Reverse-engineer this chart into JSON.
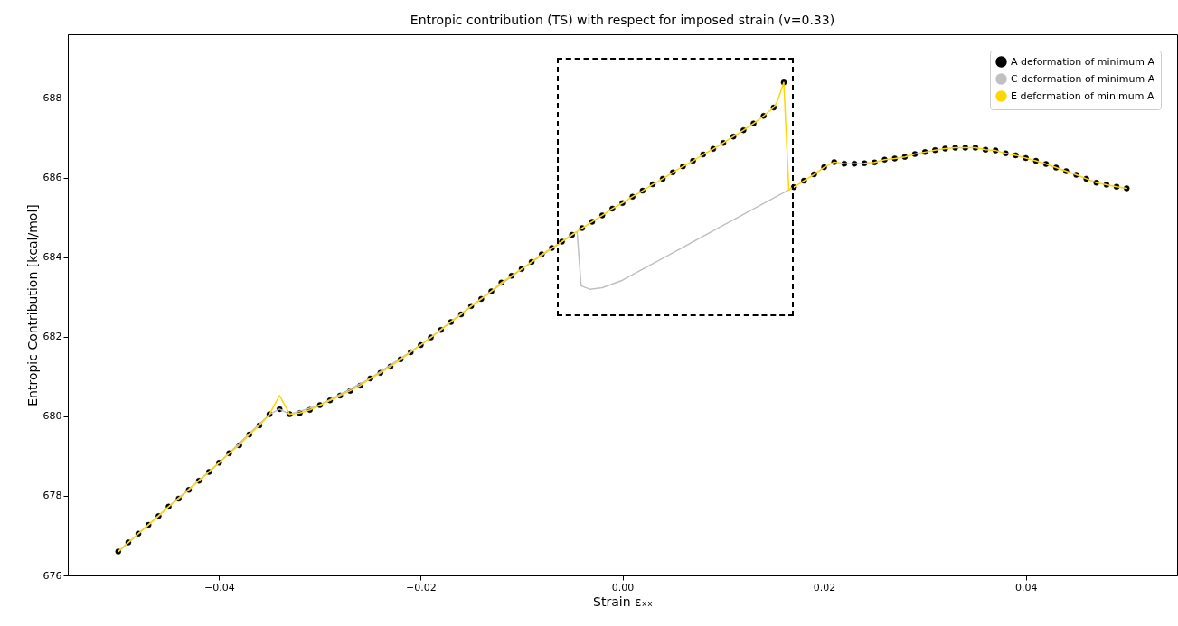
{
  "chart_data": {
    "type": "line",
    "title": "Entropic contribution (TS) with respect for imposed strain (v=0.33)",
    "xlabel": "Strain εₓₓ",
    "ylabel": "Entropic Contribution [kcal/mol]",
    "xlim": [
      -0.055,
      0.055
    ],
    "xticks": [
      {
        "value": -0.04,
        "label": "−0.04"
      },
      {
        "value": -0.02,
        "label": "−0.02"
      },
      {
        "value": 0,
        "label": "0.00"
      },
      {
        "value": 0.02,
        "label": "0.02"
      },
      {
        "value": 0.04,
        "label": "0.04"
      }
    ],
    "ylim": [
      676,
      689.6
    ],
    "yticks": [
      676,
      678,
      680,
      682,
      684,
      686,
      688
    ],
    "grid": false,
    "legend": "top right",
    "series": [
      {
        "name": "A deformation of minimum A",
        "type": "scatter",
        "marker": "circle",
        "color": "#000000",
        "x": [
          -0.05,
          -0.049,
          -0.048,
          -0.047,
          -0.046,
          -0.045,
          -0.044,
          -0.043,
          -0.042,
          -0.041,
          -0.04,
          -0.039,
          -0.038,
          -0.037,
          -0.036,
          -0.035,
          -0.034,
          -0.033,
          -0.032,
          -0.031,
          -0.03,
          -0.029,
          -0.028,
          -0.027,
          -0.026,
          -0.025,
          -0.024,
          -0.023,
          -0.022,
          -0.021,
          -0.02,
          -0.019,
          -0.018,
          -0.017,
          -0.016,
          -0.015,
          -0.014,
          -0.013,
          -0.012,
          -0.011,
          -0.01,
          -0.009,
          -0.008,
          -0.007,
          -0.006,
          -0.005,
          -0.004,
          -0.003,
          -0.002,
          -0.001,
          0,
          0.001,
          0.002,
          0.003,
          0.004,
          0.005,
          0.006,
          0.007,
          0.008,
          0.009,
          0.01,
          0.011,
          0.012,
          0.013,
          0.014,
          0.015,
          0.016,
          0.017,
          0.018,
          0.019,
          0.02,
          0.021,
          0.022,
          0.023,
          0.024,
          0.025,
          0.026,
          0.027,
          0.028,
          0.029,
          0.03,
          0.031,
          0.032,
          0.033,
          0.034,
          0.035,
          0.036,
          0.037,
          0.038,
          0.039,
          0.04,
          0.041,
          0.042,
          0.043,
          0.044,
          0.045,
          0.046,
          0.047,
          0.048,
          0.049,
          0.05
        ],
        "values": [
          676.6,
          676.83,
          677.05,
          677.27,
          677.49,
          677.73,
          677.93,
          678.15,
          678.38,
          678.6,
          678.83,
          679.07,
          679.27,
          679.54,
          679.77,
          680.05,
          680.18,
          680.05,
          680.08,
          680.16,
          680.28,
          680.4,
          680.52,
          680.64,
          680.77,
          680.95,
          681.09,
          681.25,
          681.43,
          681.61,
          681.79,
          681.98,
          682.17,
          682.37,
          682.56,
          682.77,
          682.95,
          683.14,
          683.36,
          683.53,
          683.7,
          683.88,
          684.07,
          684.23,
          684.39,
          684.56,
          684.73,
          684.89,
          685.05,
          685.22,
          685.36,
          685.52,
          685.67,
          685.83,
          685.97,
          686.13,
          686.28,
          686.42,
          686.58,
          686.72,
          686.87,
          687.03,
          687.19,
          687.36,
          687.55,
          687.76,
          688.39,
          685.76,
          685.92,
          686.08,
          686.26,
          686.39,
          686.35,
          686.35,
          686.36,
          686.38,
          686.45,
          686.48,
          686.52,
          686.59,
          686.64,
          686.69,
          686.73,
          686.75,
          686.75,
          686.75,
          686.7,
          686.68,
          686.61,
          686.56,
          686.49,
          686.42,
          686.34,
          686.25,
          686.16,
          686.07,
          685.97,
          685.87,
          685.82,
          685.77,
          685.73
        ]
      },
      {
        "name": "C deformation of minimum A",
        "type": "line",
        "color": "#c0c0c0",
        "x": [
          -0.05,
          -0.045,
          -0.04,
          -0.035,
          -0.034,
          -0.033,
          -0.03,
          -0.025,
          -0.02,
          -0.015,
          -0.01,
          -0.005,
          -0.0045,
          -0.0041,
          -0.0032,
          -0.002,
          0,
          0.005,
          0.01,
          0.0165,
          0.017
        ],
        "values": [
          676.6,
          677.73,
          678.83,
          680.05,
          680.18,
          680.05,
          680.28,
          680.95,
          681.79,
          682.77,
          683.7,
          684.56,
          684.64,
          683.28,
          683.19,
          683.23,
          683.42,
          684.11,
          684.8,
          685.69,
          685.76
        ]
      },
      {
        "name": "E deformation of minimum A",
        "type": "line",
        "color": "#ffd700",
        "x": [
          -0.05,
          -0.049,
          -0.048,
          -0.047,
          -0.046,
          -0.045,
          -0.044,
          -0.043,
          -0.042,
          -0.041,
          -0.04,
          -0.039,
          -0.038,
          -0.037,
          -0.036,
          -0.035,
          -0.034,
          -0.033,
          -0.032,
          -0.031,
          -0.03,
          -0.029,
          -0.028,
          -0.027,
          -0.026,
          -0.025,
          -0.024,
          -0.023,
          -0.022,
          -0.021,
          -0.02,
          -0.019,
          -0.018,
          -0.017,
          -0.016,
          -0.015,
          -0.014,
          -0.013,
          -0.012,
          -0.011,
          -0.01,
          -0.009,
          -0.008,
          -0.007,
          -0.006,
          -0.005,
          -0.004,
          -0.003,
          -0.002,
          -0.001,
          0,
          0.001,
          0.002,
          0.003,
          0.004,
          0.005,
          0.006,
          0.007,
          0.008,
          0.009,
          0.01,
          0.011,
          0.012,
          0.013,
          0.014,
          0.015,
          0.0154,
          0.016,
          0.0165,
          0.017,
          0.018,
          0.019,
          0.02,
          0.021,
          0.022,
          0.023,
          0.024,
          0.025,
          0.026,
          0.027,
          0.028,
          0.029,
          0.03,
          0.031,
          0.032,
          0.033,
          0.034,
          0.035,
          0.036,
          0.037,
          0.038,
          0.039,
          0.04,
          0.041,
          0.042,
          0.043,
          0.044,
          0.045,
          0.046,
          0.047,
          0.048,
          0.049,
          0.05
        ],
        "values": [
          676.6,
          676.83,
          677.05,
          677.27,
          677.49,
          677.73,
          677.93,
          678.15,
          678.38,
          678.6,
          678.83,
          679.07,
          679.27,
          679.54,
          679.77,
          680.05,
          680.52,
          680.05,
          680.08,
          680.16,
          680.28,
          680.4,
          680.52,
          680.64,
          680.77,
          680.95,
          681.09,
          681.25,
          681.43,
          681.61,
          681.79,
          681.98,
          682.17,
          682.37,
          682.56,
          682.77,
          682.95,
          683.14,
          683.36,
          683.53,
          683.7,
          683.88,
          684.07,
          684.23,
          684.39,
          684.56,
          684.73,
          684.89,
          685.05,
          685.22,
          685.36,
          685.52,
          685.67,
          685.83,
          685.97,
          686.13,
          686.28,
          686.42,
          686.58,
          686.72,
          686.87,
          687.03,
          687.19,
          687.36,
          687.55,
          687.76,
          687.94,
          688.39,
          685.69,
          685.76,
          685.92,
          686.08,
          686.26,
          686.39,
          686.35,
          686.35,
          686.36,
          686.38,
          686.45,
          686.48,
          686.52,
          686.59,
          686.64,
          686.69,
          686.73,
          686.75,
          686.75,
          686.75,
          686.7,
          686.68,
          686.61,
          686.56,
          686.49,
          686.42,
          686.34,
          686.25,
          686.16,
          686.07,
          685.97,
          685.87,
          685.82,
          685.77,
          685.73
        ]
      }
    ]
  }
}
